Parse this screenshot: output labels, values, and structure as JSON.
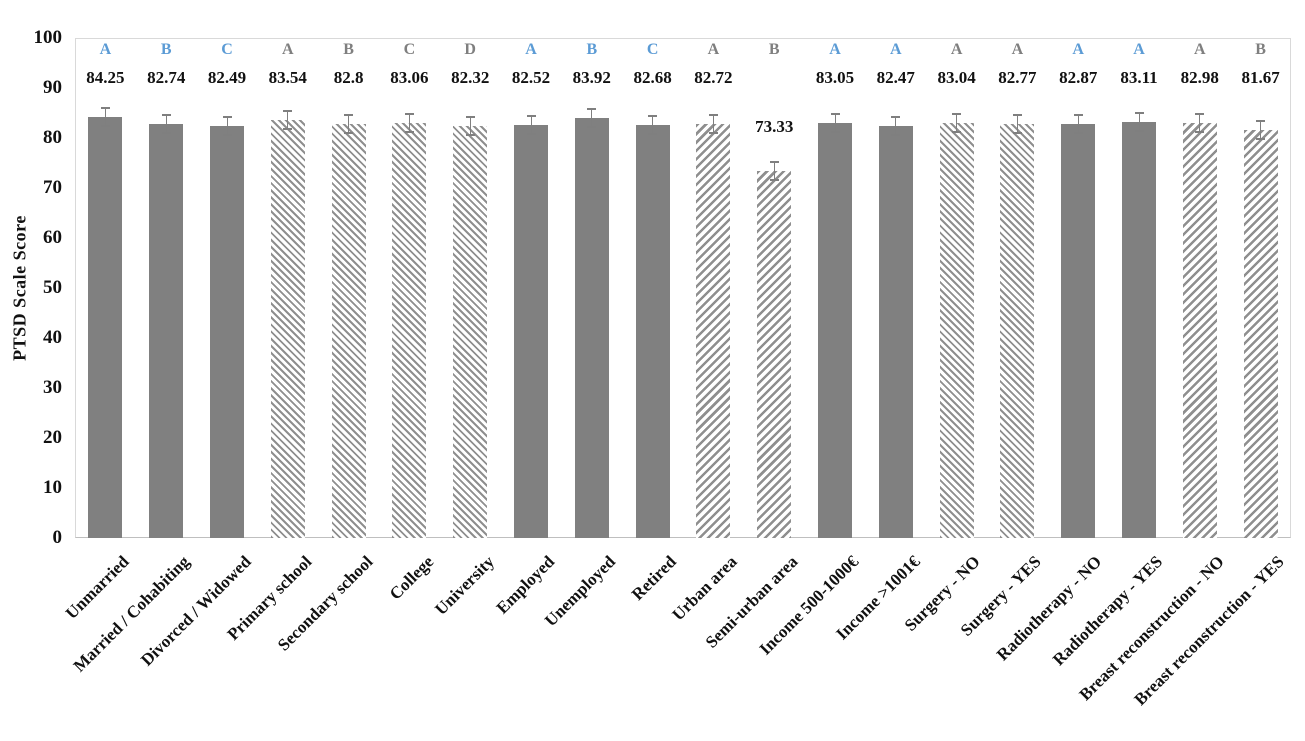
{
  "chart_data": {
    "type": "bar",
    "title": "",
    "ylabel": "PTSD Scale Score",
    "xlabel": "",
    "ylim": [
      0,
      100
    ],
    "yticks": [
      0,
      10,
      20,
      30,
      40,
      50,
      60,
      70,
      80,
      90,
      100
    ],
    "grid": false,
    "legend": false,
    "categories": [
      "Unmarried",
      "Married / Cohabiting",
      "Divorced / Widowed",
      "Primary school",
      "Secondary school",
      "College",
      "University",
      "Employed",
      "Unemployed",
      "Retired",
      "Urban area",
      "Semi-urban area",
      "Income 500-1000€",
      "Income >1001€",
      "Surgery - NO",
      "Surgery - YES",
      "Radiotherapy - NO",
      "Radiotherapy - YES",
      "Breast reconstruction - NO",
      "Breast reconstruction - YES"
    ],
    "values": [
      84.25,
      82.74,
      82.49,
      83.54,
      82.8,
      83.06,
      82.32,
      82.52,
      83.92,
      82.68,
      82.72,
      73.33,
      83.05,
      82.47,
      83.04,
      82.77,
      82.87,
      83.11,
      82.98,
      81.67
    ],
    "significance_letters": [
      "A",
      "B",
      "C",
      "A",
      "B",
      "C",
      "D",
      "A",
      "B",
      "C",
      "A",
      "B",
      "A",
      "A",
      "A",
      "A",
      "A",
      "A",
      "A",
      "B"
    ],
    "letter_color_keys": [
      "blue",
      "blue",
      "blue",
      "gray",
      "gray",
      "gray",
      "gray",
      "blue",
      "blue",
      "blue",
      "gray",
      "gray",
      "blue",
      "blue",
      "gray",
      "gray",
      "blue",
      "blue",
      "gray",
      "gray"
    ],
    "bar_patterns": [
      "solid",
      "solid",
      "solid",
      "diag-back",
      "diag-back",
      "diag-back",
      "diag-back",
      "solid",
      "solid",
      "solid",
      "diag-fwd",
      "diag-fwd",
      "solid",
      "solid",
      "diag-back",
      "diag-back",
      "solid",
      "solid",
      "diag-fwd",
      "diag-fwd"
    ],
    "error_bars_shown": true,
    "error_bar_approx": 2
  },
  "colors": {
    "bar_solid": "#808080",
    "hatch_stripe": "#8f8f8f",
    "letter_blue": "#5b9bd5",
    "letter_gray": "#7f7f7f",
    "value_label": "#111111",
    "axis_text": "#111111",
    "plot_border": "#d9d9d9",
    "error_bar": "#7f7f7f"
  }
}
